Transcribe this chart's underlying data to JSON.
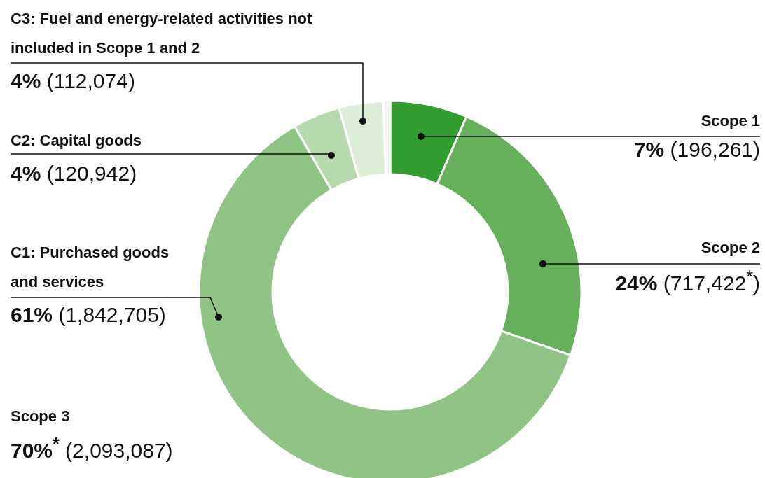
{
  "chart_data": {
    "type": "donut",
    "categories": [
      "Scope 1",
      "Scope 2",
      "C1: Purchased goods and services",
      "C2: Capital goods",
      "C3: Fuel and energy-related activities not included in Scope 1 and 2",
      null
    ],
    "values": [
      196261,
      717422,
      1842705,
      120942,
      112074,
      17366
    ],
    "colors": [
      "#339e2f",
      "#66b05b",
      "#8fc485",
      "#b7d9ae",
      "#dcedd8",
      "#eef6ec"
    ],
    "value_labels": [
      "7% (196,261)",
      "24% (717,422$^{*}$)",
      "61% (1,842,705)",
      "4% (120,942)",
      "4% (112,074)",
      null
    ],
    "annotations": [
      "Scope 3",
      "70%$^{*}$ (2,093,087)"
    ]
  }
}
